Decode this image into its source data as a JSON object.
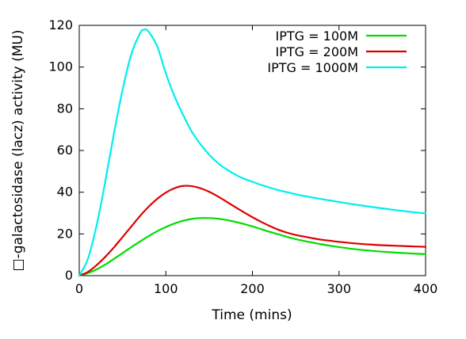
{
  "chart_data": {
    "type": "line",
    "title": "",
    "xlabel": "Time (mins)",
    "ylabel": "□-galactosidase (lacz) activity (MU)",
    "xlim": [
      0,
      400
    ],
    "ylim": [
      0,
      120
    ],
    "xticks": [
      0,
      100,
      200,
      300,
      400
    ],
    "yticks": [
      0,
      20,
      40,
      60,
      80,
      100,
      120
    ],
    "grid": false,
    "legend_position": "top-right",
    "series": [
      {
        "name": "IPTG = 100M",
        "color": "#00dd00",
        "x": [
          0,
          10,
          20,
          30,
          40,
          50,
          60,
          70,
          80,
          90,
          100,
          110,
          120,
          130,
          140,
          150,
          160,
          170,
          180,
          190,
          200,
          210,
          220,
          230,
          240,
          250,
          260,
          270,
          280,
          290,
          300,
          320,
          340,
          360,
          380,
          400
        ],
        "y": [
          0,
          1.2,
          3,
          5.3,
          8,
          10.8,
          13.6,
          16.3,
          18.9,
          21.3,
          23.3,
          25,
          26.3,
          27.2,
          27.6,
          27.6,
          27.3,
          26.7,
          25.8,
          24.8,
          23.6,
          22.3,
          21,
          19.8,
          18.6,
          17.5,
          16.6,
          15.8,
          15,
          14.3,
          13.7,
          12.6,
          11.8,
          11.2,
          10.7,
          10.3
        ]
      },
      {
        "name": "IPTG = 200M",
        "color": "#dd0000",
        "x": [
          0,
          10,
          20,
          30,
          40,
          50,
          60,
          70,
          80,
          90,
          100,
          110,
          120,
          130,
          140,
          150,
          160,
          170,
          180,
          190,
          200,
          210,
          220,
          230,
          240,
          250,
          260,
          270,
          280,
          290,
          300,
          320,
          340,
          360,
          380,
          400
        ],
        "y": [
          0,
          1.8,
          5,
          9,
          13.5,
          18.5,
          23.5,
          28.5,
          33,
          36.8,
          39.8,
          41.9,
          43,
          42.9,
          41.9,
          40.2,
          38,
          35.5,
          32.9,
          30.4,
          28,
          25.8,
          23.8,
          22,
          20.6,
          19.5,
          18.7,
          17.9,
          17.2,
          16.7,
          16.2,
          15.4,
          14.8,
          14.4,
          14.1,
          13.8
        ]
      },
      {
        "name": "IPTG = 1000M",
        "color": "#00eeee",
        "x": [
          0,
          10,
          20,
          30,
          40,
          50,
          60,
          70,
          75,
          80,
          90,
          100,
          110,
          120,
          130,
          140,
          150,
          160,
          170,
          180,
          190,
          200,
          210,
          220,
          230,
          240,
          250,
          260,
          270,
          280,
          290,
          300,
          320,
          340,
          360,
          380,
          400
        ],
        "y": [
          0,
          8,
          24,
          45,
          68,
          89,
          106,
          116,
          118,
          117,
          110,
          97,
          86,
          77,
          69,
          63,
          58,
          54,
          51,
          48.5,
          46.5,
          45,
          43.5,
          42.2,
          41,
          40,
          39,
          38.2,
          37.4,
          36.7,
          36,
          35.3,
          34,
          32.8,
          31.7,
          30.7,
          29.8
        ]
      }
    ]
  }
}
